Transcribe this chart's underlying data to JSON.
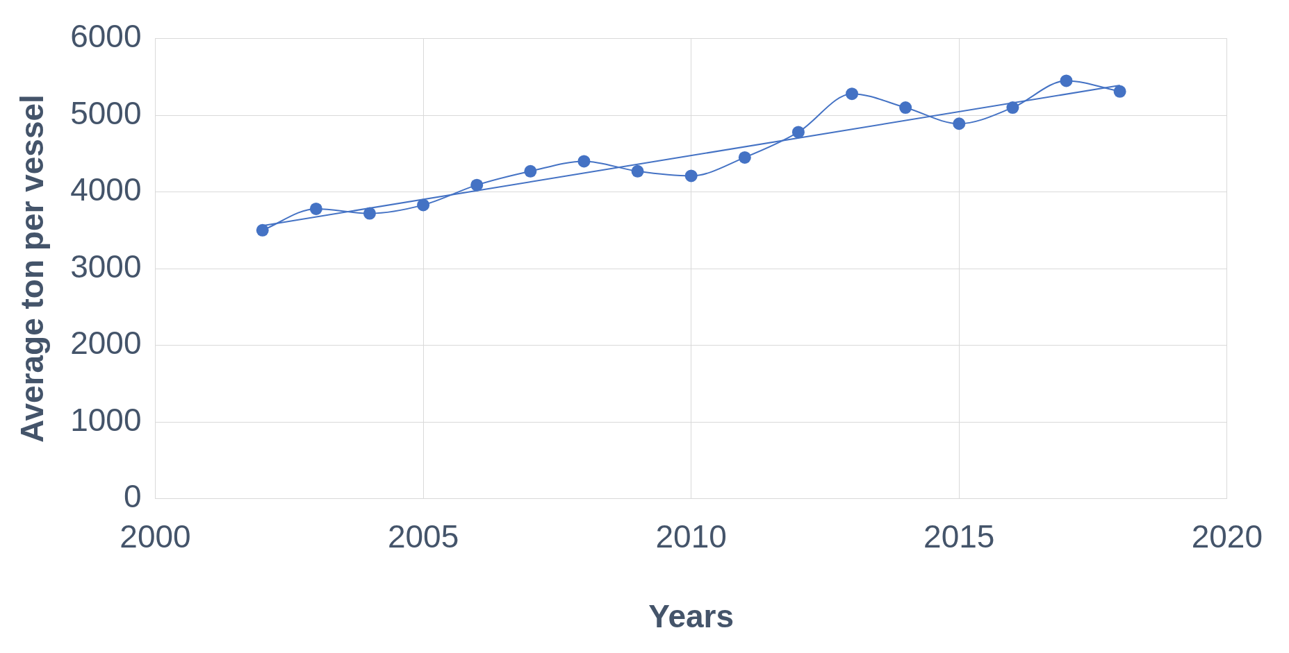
{
  "chart_data": {
    "type": "line",
    "xlabel": "Years",
    "ylabel": "Average ton per vessel",
    "xlim": [
      2000,
      2020
    ],
    "xticks": [
      2000,
      2005,
      2010,
      2015,
      2020
    ],
    "ylim": [
      0,
      6000
    ],
    "yticks": [
      0,
      1000,
      2000,
      3000,
      4000,
      5000,
      6000
    ],
    "grid": true,
    "marker": "circle",
    "series": [
      {
        "color": "#4472c4",
        "x": [
          2002,
          2003,
          2004,
          2005,
          2006,
          2007,
          2008,
          2009,
          2010,
          2011,
          2012,
          2013,
          2014,
          2015,
          2016,
          2017,
          2018
        ],
        "values": [
          3500,
          3780,
          3720,
          3830,
          4090,
          4270,
          4400,
          4270,
          4210,
          4450,
          4780,
          5280,
          5100,
          4890,
          5100,
          5450,
          5310
        ]
      },
      {
        "color": "#4472c4",
        "marker": "none",
        "x": [
          2002,
          2018
        ],
        "values": [
          3560,
          5390
        ]
      }
    ]
  }
}
